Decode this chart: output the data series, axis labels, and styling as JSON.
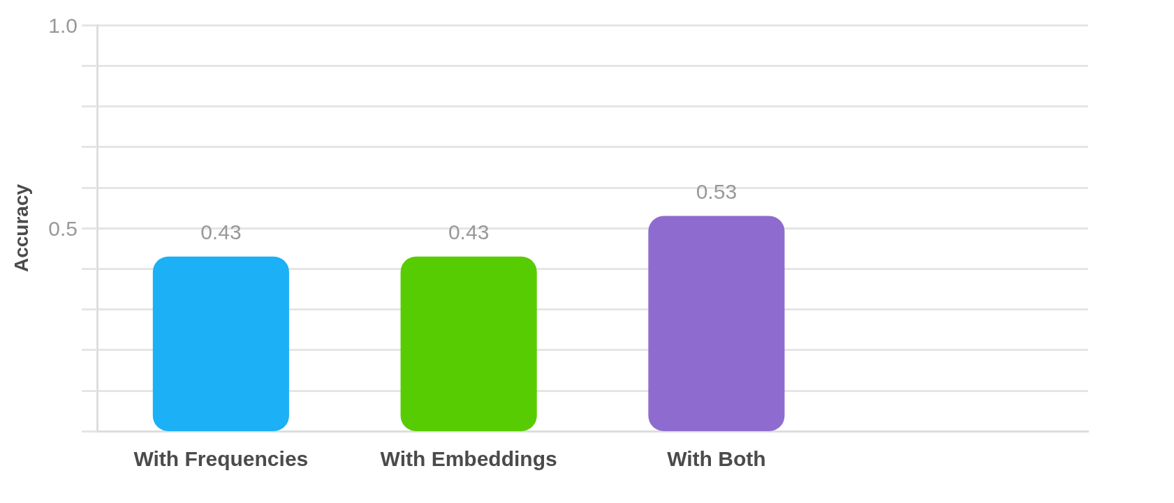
{
  "chart_data": {
    "type": "bar",
    "ylabel": "Accuracy",
    "categories": [
      "With Frequencies",
      "With Embeddings",
      "With Both",
      null
    ],
    "values": [
      0.43,
      0.43,
      0.53,
      null
    ],
    "colors": [
      "#1cb0f6",
      "#58cc02",
      "#8e6ccf",
      "#8e6ccf"
    ],
    "ylim": [
      0,
      1
    ],
    "yticks": [
      {
        "value": 0,
        "label": null
      },
      {
        "value": 0.1,
        "label": null
      },
      {
        "value": 0.2,
        "label": null
      },
      {
        "value": 0.3,
        "label": null
      },
      {
        "value": 0.4,
        "label": null
      },
      0.5,
      {
        "value": 0.6,
        "label": null
      },
      {
        "value": 0.7,
        "label": null
      },
      {
        "value": 0.8,
        "label": null
      },
      {
        "value": 0.9,
        "label": null
      },
      {
        "value": 1,
        "label": "1.0"
      }
    ],
    "grid": "y",
    "data_labels": true
  }
}
